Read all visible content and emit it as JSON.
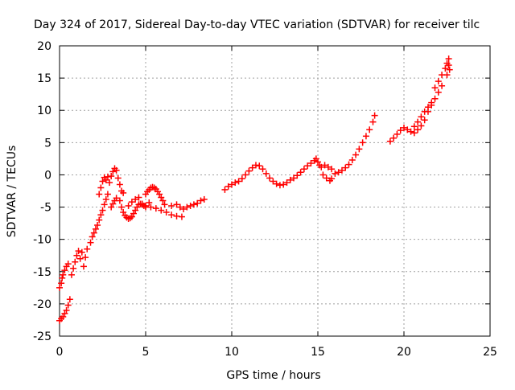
{
  "chart_data": {
    "type": "scatter",
    "title": "Day 324 of 2017, Sidereal Day-to-day VTEC variation (SDTVAR) for receiver tilc",
    "xlabel": "GPS time / hours",
    "ylabel": "SDTVAR / TECUs",
    "xlim": [
      0,
      25
    ],
    "ylim": [
      -25,
      20
    ],
    "x_ticks": [
      "0",
      "5",
      "10",
      "15",
      "20",
      "25"
    ],
    "y_ticks": [
      "-25",
      "-20",
      "-15",
      "-10",
      "-5",
      "0",
      "5",
      "10",
      "15",
      "20"
    ],
    "grid": true,
    "marker": "+",
    "color": "#ff0000",
    "series": [
      {
        "points": [
          [
            0.0,
            -22.6
          ],
          [
            0.1,
            -22.3
          ],
          [
            0.2,
            -22.0
          ],
          [
            0.3,
            -21.5
          ],
          [
            0.4,
            -21.0
          ],
          [
            0.5,
            -20.2
          ],
          [
            0.6,
            -19.3
          ],
          [
            0.0,
            -17.5
          ],
          [
            0.1,
            -16.8
          ],
          [
            0.15,
            -16.0
          ],
          [
            0.2,
            -15.5
          ],
          [
            0.3,
            -14.8
          ],
          [
            0.4,
            -14.2
          ],
          [
            0.5,
            -13.8
          ],
          [
            0.7,
            -15.5
          ],
          [
            0.8,
            -14.5
          ],
          [
            0.9,
            -13.5
          ],
          [
            1.0,
            -12.5
          ],
          [
            1.1,
            -11.8
          ],
          [
            1.2,
            -13.0
          ],
          [
            1.3,
            -12.0
          ],
          [
            1.4,
            -14.2
          ],
          [
            1.5,
            -12.8
          ],
          [
            1.6,
            -11.5
          ],
          [
            1.8,
            -10.5
          ],
          [
            1.9,
            -9.6
          ],
          [
            2.0,
            -9.0
          ],
          [
            2.1,
            -8.4
          ],
          [
            2.2,
            -7.8
          ],
          [
            2.3,
            -7.0
          ],
          [
            2.4,
            -6.2
          ],
          [
            2.5,
            -5.5
          ],
          [
            2.6,
            -4.6
          ],
          [
            2.7,
            -3.8
          ],
          [
            2.8,
            -3.0
          ],
          [
            2.3,
            -3.0
          ],
          [
            2.4,
            -2.0
          ],
          [
            2.5,
            -1.0
          ],
          [
            2.6,
            -0.4
          ],
          [
            2.7,
            -0.8
          ],
          [
            2.8,
            -0.3
          ],
          [
            2.9,
            -1.2
          ],
          [
            3.0,
            -0.2
          ],
          [
            3.1,
            0.5
          ],
          [
            3.2,
            1.0
          ],
          [
            3.3,
            0.7
          ],
          [
            3.4,
            -0.5
          ],
          [
            3.5,
            -1.5
          ],
          [
            3.6,
            -2.5
          ],
          [
            3.7,
            -2.8
          ],
          [
            3.0,
            -5.0
          ],
          [
            3.1,
            -4.5
          ],
          [
            3.2,
            -4.0
          ],
          [
            3.3,
            -3.6
          ],
          [
            3.5,
            -4.0
          ],
          [
            3.6,
            -5.0
          ],
          [
            3.7,
            -5.8
          ],
          [
            3.8,
            -6.3
          ],
          [
            3.9,
            -6.6
          ],
          [
            4.0,
            -6.8
          ],
          [
            4.1,
            -6.7
          ],
          [
            4.2,
            -6.5
          ],
          [
            4.3,
            -6.0
          ],
          [
            4.4,
            -5.5
          ],
          [
            4.5,
            -5.0
          ],
          [
            4.6,
            -4.6
          ],
          [
            4.7,
            -4.5
          ],
          [
            4.8,
            -4.6
          ],
          [
            4.9,
            -4.8
          ],
          [
            5.0,
            -5.0
          ],
          [
            4.0,
            -4.8
          ],
          [
            4.2,
            -4.2
          ],
          [
            4.4,
            -3.8
          ],
          [
            4.6,
            -3.5
          ],
          [
            4.8,
            -4.5
          ],
          [
            5.0,
            -4.8
          ],
          [
            5.2,
            -4.3
          ],
          [
            5.0,
            -3.0
          ],
          [
            5.1,
            -2.6
          ],
          [
            5.2,
            -2.3
          ],
          [
            5.3,
            -2.0
          ],
          [
            5.4,
            -1.9
          ],
          [
            5.5,
            -2.0
          ],
          [
            5.6,
            -2.2
          ],
          [
            5.7,
            -2.6
          ],
          [
            5.8,
            -3.0
          ],
          [
            5.9,
            -3.5
          ],
          [
            6.0,
            -4.0
          ],
          [
            6.1,
            -4.6
          ],
          [
            5.3,
            -5.0
          ],
          [
            5.6,
            -5.2
          ],
          [
            5.9,
            -5.5
          ],
          [
            6.2,
            -5.8
          ],
          [
            6.5,
            -6.2
          ],
          [
            6.8,
            -6.4
          ],
          [
            7.1,
            -6.5
          ],
          [
            6.5,
            -4.8
          ],
          [
            6.8,
            -4.6
          ],
          [
            7.0,
            -5.0
          ],
          [
            7.2,
            -5.3
          ],
          [
            7.4,
            -5.0
          ],
          [
            7.6,
            -4.8
          ],
          [
            7.8,
            -4.6
          ],
          [
            8.0,
            -4.4
          ],
          [
            8.2,
            -4.0
          ],
          [
            8.4,
            -3.8
          ],
          [
            9.6,
            -2.3
          ],
          [
            9.8,
            -1.8
          ],
          [
            10.0,
            -1.5
          ],
          [
            10.2,
            -1.2
          ],
          [
            10.4,
            -1.0
          ],
          [
            10.6,
            -0.6
          ],
          [
            10.8,
            0.0
          ],
          [
            11.0,
            0.6
          ],
          [
            11.2,
            1.1
          ],
          [
            11.4,
            1.5
          ],
          [
            11.6,
            1.4
          ],
          [
            11.8,
            0.9
          ],
          [
            12.0,
            0.2
          ],
          [
            12.2,
            -0.5
          ],
          [
            12.4,
            -1.0
          ],
          [
            12.6,
            -1.4
          ],
          [
            12.8,
            -1.6
          ],
          [
            13.0,
            -1.5
          ],
          [
            13.2,
            -1.2
          ],
          [
            13.4,
            -0.8
          ],
          [
            13.6,
            -0.5
          ],
          [
            13.8,
            -0.1
          ],
          [
            14.0,
            0.4
          ],
          [
            14.2,
            0.9
          ],
          [
            14.4,
            1.4
          ],
          [
            14.6,
            1.8
          ],
          [
            14.8,
            2.2
          ],
          [
            14.9,
            2.5
          ],
          [
            15.0,
            2.0
          ],
          [
            15.1,
            1.5
          ],
          [
            15.2,
            1.2
          ],
          [
            15.4,
            1.5
          ],
          [
            15.6,
            1.2
          ],
          [
            15.8,
            0.9
          ],
          [
            15.3,
            0.0
          ],
          [
            15.5,
            -0.5
          ],
          [
            15.7,
            -0.9
          ],
          [
            15.8,
            -0.6
          ],
          [
            16.0,
            0.2
          ],
          [
            16.2,
            0.4
          ],
          [
            16.4,
            0.7
          ],
          [
            16.6,
            1.1
          ],
          [
            16.8,
            1.6
          ],
          [
            17.0,
            2.3
          ],
          [
            17.2,
            3.1
          ],
          [
            17.4,
            4.0
          ],
          [
            17.6,
            5.0
          ],
          [
            17.8,
            6.0
          ],
          [
            18.0,
            7.0
          ],
          [
            18.2,
            8.2
          ],
          [
            18.3,
            9.2
          ],
          [
            19.2,
            5.2
          ],
          [
            19.4,
            5.7
          ],
          [
            19.6,
            6.3
          ],
          [
            19.8,
            6.9
          ],
          [
            20.0,
            7.3
          ],
          [
            20.2,
            7.0
          ],
          [
            20.4,
            6.7
          ],
          [
            20.6,
            6.5
          ],
          [
            20.8,
            7.0
          ],
          [
            21.0,
            7.6
          ],
          [
            21.2,
            8.5
          ],
          [
            20.6,
            7.5
          ],
          [
            20.8,
            8.2
          ],
          [
            21.0,
            9.0
          ],
          [
            21.2,
            9.8
          ],
          [
            21.4,
            10.5
          ],
          [
            21.6,
            11.2
          ],
          [
            21.4,
            9.8
          ],
          [
            21.6,
            10.8
          ],
          [
            21.8,
            11.8
          ],
          [
            22.0,
            12.8
          ],
          [
            22.2,
            13.8
          ],
          [
            21.8,
            13.5
          ],
          [
            22.0,
            14.5
          ],
          [
            22.2,
            15.5
          ],
          [
            22.4,
            16.5
          ],
          [
            22.5,
            17.3
          ],
          [
            22.6,
            18.0
          ],
          [
            22.6,
            17.0
          ],
          [
            22.65,
            16.3
          ],
          [
            22.5,
            15.5
          ]
        ]
      }
    ]
  }
}
